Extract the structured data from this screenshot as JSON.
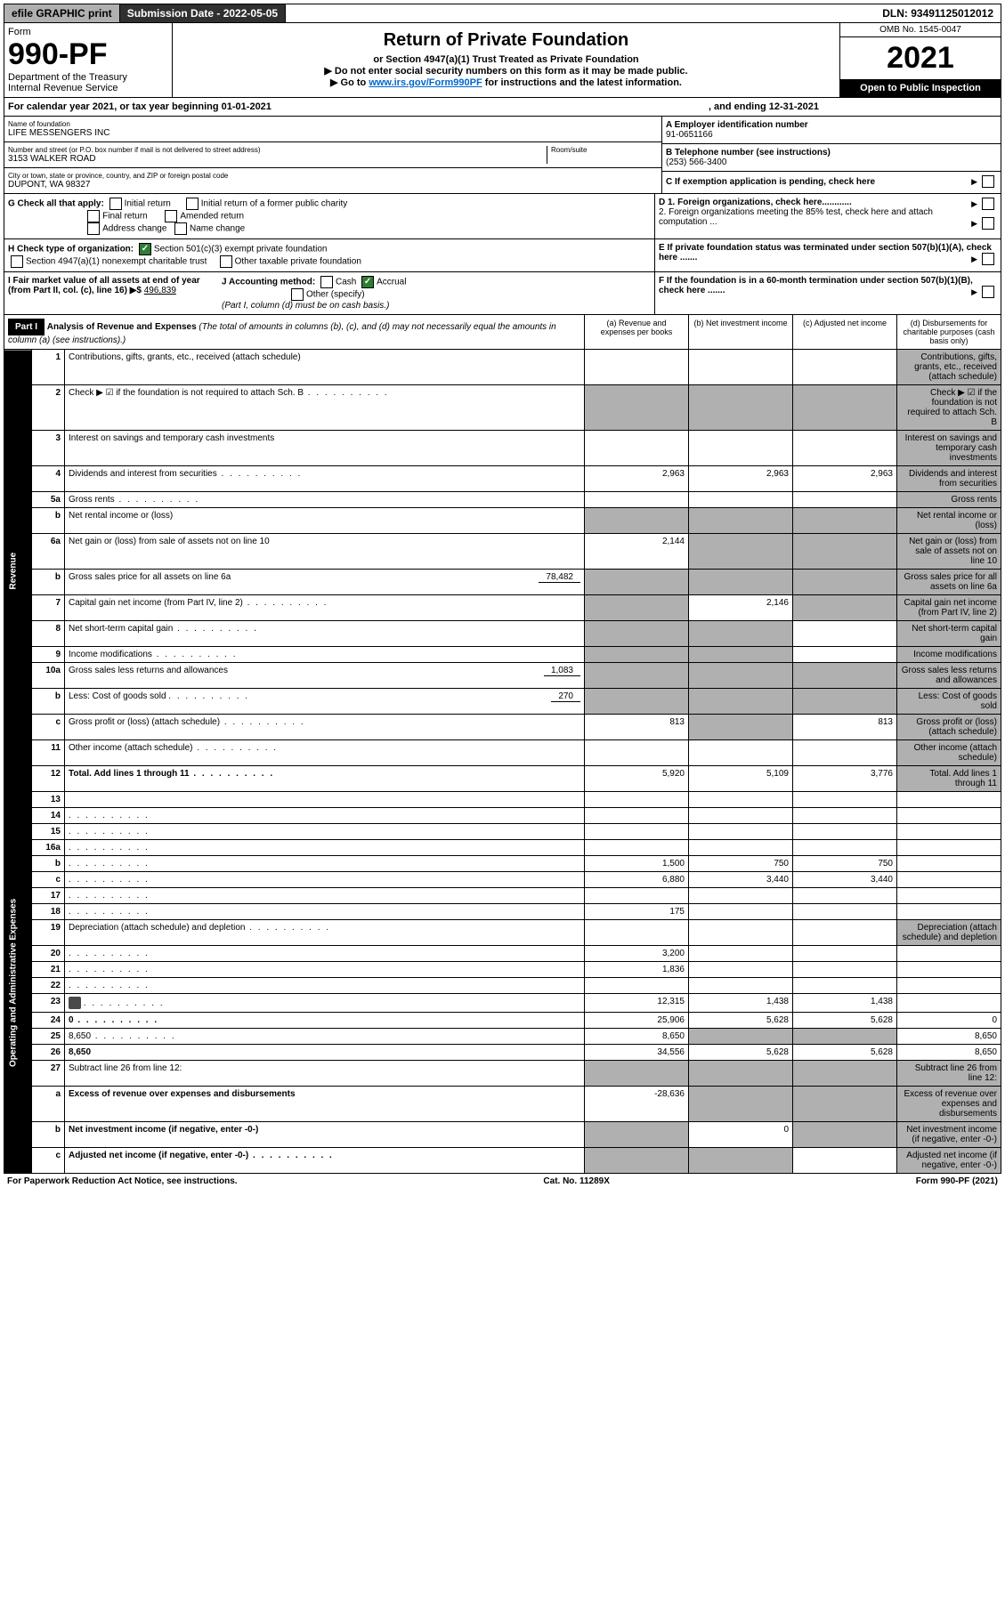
{
  "topbar": {
    "efile": "efile GRAPHIC print",
    "subdate_label": "Submission Date - 2022-05-05",
    "dln": "DLN: 93491125012012"
  },
  "header": {
    "form_word": "Form",
    "form_no": "990-PF",
    "dept": "Department of the Treasury",
    "irs": "Internal Revenue Service",
    "title": "Return of Private Foundation",
    "subtitle": "or Section 4947(a)(1) Trust Treated as Private Foundation",
    "note1": "▶ Do not enter social security numbers on this form as it may be made public.",
    "note2_prefix": "▶ Go to ",
    "note2_link": "www.irs.gov/Form990PF",
    "note2_suffix": " for instructions and the latest information.",
    "omb": "OMB No. 1545-0047",
    "year": "2021",
    "open": "Open to Public Inspection"
  },
  "cal": {
    "text": "For calendar year 2021, or tax year beginning 01-01-2021",
    "ending": ", and ending 12-31-2021"
  },
  "id": {
    "name_label": "Name of foundation",
    "name": "LIFE MESSENGERS INC",
    "addr_label": "Number and street (or P.O. box number if mail is not delivered to street address)",
    "addr": "3153 WALKER ROAD",
    "room_label": "Room/suite",
    "city_label": "City or town, state or province, country, and ZIP or foreign postal code",
    "city": "DUPONT, WA  98327",
    "a_label": "A Employer identification number",
    "a_val": "91-0651166",
    "b_label": "B Telephone number (see instructions)",
    "b_val": "(253) 566-3400",
    "c_label": "C If exemption application is pending, check here"
  },
  "checks": {
    "g": "G Check all that apply:",
    "g_opts": [
      "Initial return",
      "Final return",
      "Address change",
      "Initial return of a former public charity",
      "Amended return",
      "Name change"
    ],
    "h": "H Check type of organization:",
    "h1": "Section 501(c)(3) exempt private foundation",
    "h2": "Section 4947(a)(1) nonexempt charitable trust",
    "h3": "Other taxable private foundation",
    "i": "I Fair market value of all assets at end of year (from Part II, col. (c), line 16) ▶$",
    "i_val": "496,839",
    "j": "J Accounting method:",
    "j_cash": "Cash",
    "j_accrual": "Accrual",
    "j_other": "Other (specify)",
    "j_note": "(Part I, column (d) must be on cash basis.)",
    "d1": "D 1. Foreign organizations, check here............",
    "d2": "2. Foreign organizations meeting the 85% test, check here and attach computation ...",
    "e": "E  If private foundation status was terminated under section 507(b)(1)(A), check here .......",
    "f": "F  If the foundation is in a 60-month termination under section 507(b)(1)(B), check here ......."
  },
  "part1": {
    "label": "Part I",
    "title": "Analysis of Revenue and Expenses",
    "title_note": "(The total of amounts in columns (b), (c), and (d) may not necessarily equal the amounts in column (a) (see instructions).)",
    "cols": {
      "a": "(a) Revenue and expenses per books",
      "b": "(b) Net investment income",
      "c": "(c) Adjusted net income",
      "d": "(d) Disbursements for charitable purposes (cash basis only)"
    }
  },
  "sides": {
    "rev": "Revenue",
    "exp": "Operating and Administrative Expenses"
  },
  "rows": [
    {
      "n": "1",
      "d": "Contributions, gifts, grants, etc., received (attach schedule)",
      "a": "",
      "b": "",
      "c": "",
      "shD": true
    },
    {
      "n": "2",
      "d": "Check ▶ ☑ if the foundation is not required to attach Sch. B",
      "dots": true,
      "shA": true,
      "shB": true,
      "shC": true,
      "shD": true
    },
    {
      "n": "3",
      "d": "Interest on savings and temporary cash investments",
      "a": "",
      "b": "",
      "c": "",
      "shD": true
    },
    {
      "n": "4",
      "d": "Dividends and interest from securities",
      "dots": true,
      "a": "2,963",
      "b": "2,963",
      "c": "2,963",
      "shD": true
    },
    {
      "n": "5a",
      "d": "Gross rents",
      "dots": true,
      "a": "",
      "b": "",
      "c": "",
      "shD": true
    },
    {
      "n": "b",
      "d": "Net rental income or (loss)",
      "shA": true,
      "shB": true,
      "shC": true,
      "shD": true
    },
    {
      "n": "6a",
      "d": "Net gain or (loss) from sale of assets not on line 10",
      "a": "2,144",
      "shB": true,
      "shC": true,
      "shD": true
    },
    {
      "n": "b",
      "d": "Gross sales price for all assets on line 6a",
      "inset": "78,482",
      "shA": true,
      "shB": true,
      "shC": true,
      "shD": true
    },
    {
      "n": "7",
      "d": "Capital gain net income (from Part IV, line 2)",
      "dots": true,
      "shA": true,
      "b": "2,146",
      "shC": true,
      "shD": true
    },
    {
      "n": "8",
      "d": "Net short-term capital gain",
      "dots": true,
      "shA": true,
      "shB": true,
      "c": "",
      "shD": true
    },
    {
      "n": "9",
      "d": "Income modifications",
      "dots": true,
      "shA": true,
      "shB": true,
      "c": "",
      "shD": true
    },
    {
      "n": "10a",
      "d": "Gross sales less returns and allowances",
      "inset": "1,083",
      "shA": true,
      "shB": true,
      "shC": true,
      "shD": true
    },
    {
      "n": "b",
      "d": "Less: Cost of goods sold",
      "dots": true,
      "inset": "270",
      "shA": true,
      "shB": true,
      "shC": true,
      "shD": true
    },
    {
      "n": "c",
      "d": "Gross profit or (loss) (attach schedule)",
      "dots": true,
      "a": "813",
      "shB": true,
      "c": "813",
      "shD": true
    },
    {
      "n": "11",
      "d": "Other income (attach schedule)",
      "dots": true,
      "a": "",
      "b": "",
      "c": "",
      "shD": true
    },
    {
      "n": "12",
      "d": "Total. Add lines 1 through 11",
      "dots": true,
      "bold": true,
      "a": "5,920",
      "b": "5,109",
      "c": "3,776",
      "shD": true
    },
    {
      "n": "13",
      "d": "",
      "a": "",
      "b": "",
      "c": ""
    },
    {
      "n": "14",
      "d": "",
      "dots": true,
      "a": "",
      "b": "",
      "c": ""
    },
    {
      "n": "15",
      "d": "",
      "dots": true,
      "a": "",
      "b": "",
      "c": ""
    },
    {
      "n": "16a",
      "d": "",
      "dots": true,
      "a": "",
      "b": "",
      "c": ""
    },
    {
      "n": "b",
      "d": "",
      "dots": true,
      "a": "1,500",
      "b": "750",
      "c": "750"
    },
    {
      "n": "c",
      "d": "",
      "dots": true,
      "a": "6,880",
      "b": "3,440",
      "c": "3,440"
    },
    {
      "n": "17",
      "d": "",
      "dots": true,
      "a": "",
      "b": "",
      "c": ""
    },
    {
      "n": "18",
      "d": "",
      "dots": true,
      "a": "175",
      "b": "",
      "c": ""
    },
    {
      "n": "19",
      "d": "Depreciation (attach schedule) and depletion",
      "dots": true,
      "a": "",
      "b": "",
      "c": "",
      "shD": true
    },
    {
      "n": "20",
      "d": "",
      "dots": true,
      "a": "3,200",
      "b": "",
      "c": ""
    },
    {
      "n": "21",
      "d": "",
      "dots": true,
      "a": "1,836",
      "b": "",
      "c": ""
    },
    {
      "n": "22",
      "d": "",
      "dots": true,
      "a": "",
      "b": "",
      "c": ""
    },
    {
      "n": "23",
      "d": "",
      "dots": true,
      "icon": true,
      "a": "12,315",
      "b": "1,438",
      "c": "1,438"
    },
    {
      "n": "24",
      "d": "0",
      "dots": true,
      "bold": true,
      "a": "25,906",
      "b": "5,628",
      "c": "5,628"
    },
    {
      "n": "25",
      "d": "8,650",
      "dots": true,
      "a": "8,650",
      "shB": true,
      "shC": true
    },
    {
      "n": "26",
      "d": "8,650",
      "bold": true,
      "a": "34,556",
      "b": "5,628",
      "c": "5,628"
    },
    {
      "n": "27",
      "d": "Subtract line 26 from line 12:",
      "shA": true,
      "shB": true,
      "shC": true,
      "shD": true
    },
    {
      "n": "a",
      "d": "Excess of revenue over expenses and disbursements",
      "bold": true,
      "a": "-28,636",
      "shB": true,
      "shC": true,
      "shD": true
    },
    {
      "n": "b",
      "d": "Net investment income (if negative, enter -0-)",
      "bold": true,
      "shA": true,
      "b": "0",
      "shC": true,
      "shD": true
    },
    {
      "n": "c",
      "d": "Adjusted net income (if negative, enter -0-)",
      "dots": true,
      "bold": true,
      "shA": true,
      "shB": true,
      "c": "",
      "shD": true
    }
  ],
  "footer": {
    "left": "For Paperwork Reduction Act Notice, see instructions.",
    "mid": "Cat. No. 11289X",
    "right": "Form 990-PF (2021)"
  }
}
